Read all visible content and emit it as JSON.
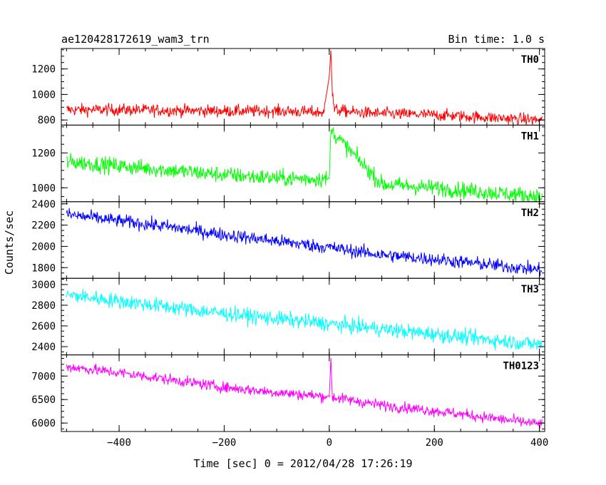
{
  "chart_data": {
    "type": "line",
    "title": "ae120428172619_wam3_trn",
    "subtitle": "Bin time: 1.0 s",
    "xlabel": "Time [sec] 0 = 2012/04/28 17:26:19",
    "ylabel": "Counts/sec",
    "xlim": [
      -510,
      410
    ],
    "xticks": [
      -400,
      -200,
      0,
      200,
      400
    ],
    "grid": false,
    "panels": [
      {
        "name": "TH0",
        "color": "#ff0000",
        "ylim": [
          760,
          1360
        ],
        "yticks": [
          800,
          1000,
          1200
        ],
        "baseline_start": 880,
        "baseline_end": 800,
        "noise": 45,
        "x": [
          -500,
          -400,
          -300,
          -200,
          -100,
          -10,
          0,
          3,
          6,
          10,
          50,
          100,
          200,
          300,
          400
        ],
        "y": [
          880,
          880,
          875,
          870,
          870,
          860,
          1150,
          1350,
          1000,
          880,
          860,
          850,
          840,
          820,
          800
        ]
      },
      {
        "name": "TH1",
        "color": "#00ff00",
        "ylim": [
          920,
          1360
        ],
        "yticks": [
          1000,
          1200
        ],
        "baseline_start": 1150,
        "baseline_end": 950,
        "noise": 45,
        "x": [
          -500,
          -400,
          -300,
          -200,
          -100,
          0,
          3,
          100,
          200,
          300,
          400
        ],
        "y": [
          1150,
          1125,
          1100,
          1075,
          1055,
          1050,
          1330,
          1020,
          1000,
          975,
          950
        ]
      },
      {
        "name": "TH2",
        "color": "#0000ff",
        "ylim": [
          1700,
          2420
        ],
        "yticks": [
          1800,
          2000,
          2200,
          2400
        ],
        "baseline_start": 2300,
        "baseline_end": 1780,
        "noise": 60,
        "x": [
          -500,
          -400,
          -300,
          -200,
          -100,
          0,
          100,
          200,
          300,
          400
        ],
        "y": [
          2300,
          2240,
          2180,
          2110,
          2050,
          1990,
          1920,
          1880,
          1830,
          1780
        ]
      },
      {
        "name": "TH3",
        "color": "#00ffff",
        "ylim": [
          2320,
          3060
        ],
        "yticks": [
          2400,
          2600,
          2800,
          3000
        ],
        "baseline_start": 2900,
        "baseline_end": 2420,
        "noise": 70,
        "x": [
          -500,
          -400,
          -300,
          -200,
          -100,
          0,
          100,
          200,
          300,
          400
        ],
        "y": [
          2900,
          2840,
          2780,
          2720,
          2670,
          2620,
          2570,
          2520,
          2470,
          2420
        ]
      },
      {
        "name": "TH0123",
        "color": "#ff00ff",
        "ylim": [
          5820,
          7450
        ],
        "yticks": [
          6000,
          6500,
          7000
        ],
        "baseline_start": 7200,
        "baseline_end": 5980,
        "noise": 110,
        "x": [
          -500,
          -400,
          -300,
          -200,
          -100,
          0,
          3,
          6,
          100,
          200,
          300,
          400
        ],
        "y": [
          7200,
          7070,
          6920,
          6760,
          6650,
          6560,
          7380,
          6550,
          6380,
          6260,
          6120,
          5980
        ]
      }
    ]
  }
}
